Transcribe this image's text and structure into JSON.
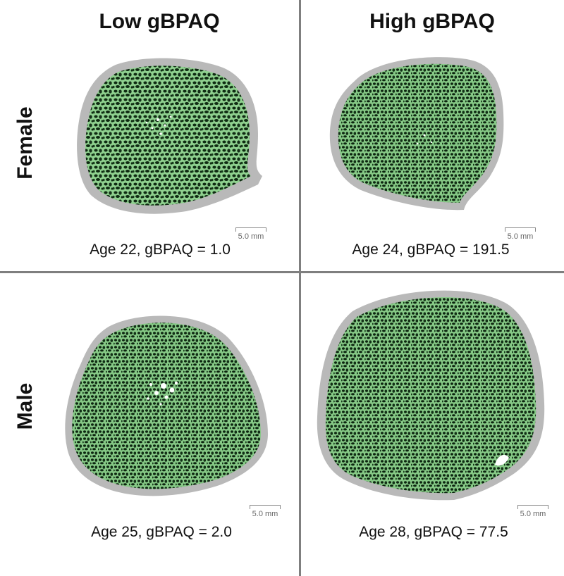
{
  "columns": {
    "low": "Low gBPAQ",
    "high": "High gBPAQ"
  },
  "rows": {
    "female": "Female",
    "male": "Male"
  },
  "panels": [
    {
      "caption": "Age 22, gBPAQ = 1.0",
      "scale": "5.0 mm"
    },
    {
      "caption": "Age 24, gBPAQ = 191.5",
      "scale": "5.0 mm"
    },
    {
      "caption": "Age 25, gBPAQ = 2.0",
      "scale": "5.0 mm"
    },
    {
      "caption": "Age 28, gBPAQ = 77.5",
      "scale": "5.0 mm"
    }
  ],
  "colors": {
    "cortex": "#b9b9b9",
    "trabecular": "#8fd18f",
    "pores": "#0f2a12",
    "divider": "#7f7f7f"
  }
}
